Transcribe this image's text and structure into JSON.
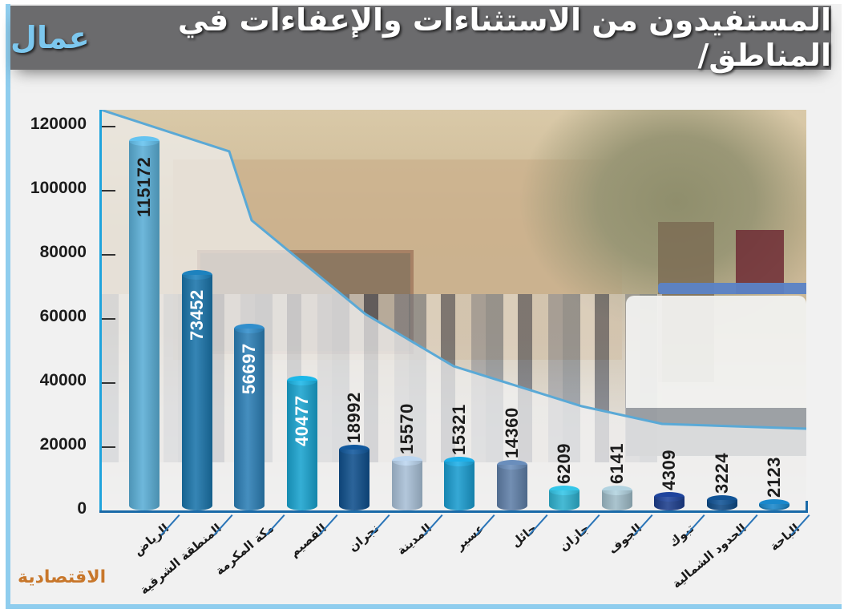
{
  "header": {
    "title": "المستفيدون من الاستثناءات والإعفاءات في المناطق/",
    "subtitle": "عمال"
  },
  "footer": {
    "logo": "الاقتصادية"
  },
  "colors": {
    "frame_border": "#8fcdee",
    "title_bg": "#6b6b6d",
    "subtitle": "#7cc7ee",
    "axis": "#1a6aa8",
    "logo": "#c8772b"
  },
  "y_axis": {
    "ticks": [
      "120000",
      "100000",
      "80000",
      "60000",
      "40000",
      "20000",
      "0"
    ]
  },
  "chart_data": {
    "type": "bar",
    "title": "المستفيدون من الاستثناءات والإعفاءات في المناطق/ عمال",
    "xlabel": "",
    "ylabel": "",
    "ylim": [
      0,
      120000
    ],
    "y_ticks": [
      0,
      20000,
      40000,
      60000,
      80000,
      100000,
      120000
    ],
    "grid": false,
    "legend": null,
    "categories": [
      "الرياض",
      "المنطقة الشرقية",
      "مكة المكرمة",
      "القصيم",
      "نجران",
      "المدينة",
      "عسير",
      "حائل",
      "جازان",
      "الجوف",
      "تبوك",
      "الحدود الشمالية",
      "الباحة"
    ],
    "values": [
      115172,
      73452,
      56697,
      40477,
      18992,
      15570,
      15321,
      14360,
      6209,
      6141,
      4309,
      3224,
      2123
    ],
    "labels": [
      "115172",
      "73452",
      "56697",
      "40477",
      "18992",
      "15570",
      "15321",
      "14360",
      "6209",
      "6141",
      "4309",
      "3224",
      "2123"
    ],
    "bar_colors": [
      "#5aaed6",
      "#1a74aa",
      "#2c7fb6",
      "#19a3cf",
      "#0f4f8c",
      "#a8bfd6",
      "#1a9ccf",
      "#5f7fa8",
      "#2eb1cf",
      "#9fbcc8",
      "#1c3d8c",
      "#0e4a86",
      "#1679b6"
    ],
    "label_colors": [
      "#1c1c1c",
      "#ffffff",
      "#ffffff",
      "#ffffff",
      "#1c1c1c",
      "#1c1c1c",
      "#1c1c1c",
      "#1c1c1c",
      "#1c1c1c",
      "#1c1c1c",
      "#1c1c1c",
      "#1c1c1c",
      "#1c1c1c"
    ],
    "label_inside": [
      true,
      true,
      true,
      true,
      false,
      false,
      false,
      false,
      false,
      false,
      false,
      false,
      false
    ]
  }
}
